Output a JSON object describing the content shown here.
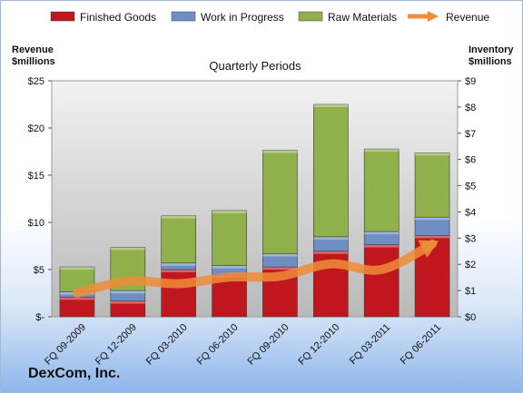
{
  "chart_data": {
    "type": "bar",
    "title": "Quarterly Periods",
    "company": "DexCom, Inc.",
    "categories": [
      "FQ 09-2009",
      "FQ 12-2009",
      "FQ 03-2010",
      "FQ 06-2010",
      "FQ 09-2010",
      "FQ 12-2010",
      "FQ 03-2011",
      "FQ 06-2011"
    ],
    "stacked": true,
    "series": [
      {
        "name": "Finished Goods",
        "axis": "right",
        "color": "#c0161e",
        "values": [
          0.75,
          0.6,
          1.8,
          1.6,
          1.9,
          2.5,
          2.75,
          3.1
        ]
      },
      {
        "name": "Work in Progress",
        "axis": "right",
        "color": "#6f8fc4",
        "values": [
          0.2,
          0.4,
          0.25,
          0.35,
          0.5,
          0.55,
          0.5,
          0.7
        ]
      },
      {
        "name": "Raw Materials",
        "axis": "right",
        "color": "#8fb04a",
        "values": [
          0.95,
          1.65,
          1.8,
          2.1,
          3.95,
          5.05,
          3.15,
          2.45
        ]
      },
      {
        "name": "Revenue",
        "axis": "left",
        "type": "line",
        "color": "#f08c3a",
        "values": [
          2.5,
          3.8,
          3.5,
          4.2,
          4.3,
          5.6,
          5.0,
          7.7
        ]
      }
    ],
    "y_left": {
      "label_line1": "Revenue",
      "label_line2": "$millions",
      "ticks": [
        "$-",
        "$5",
        "$10",
        "$15",
        "$20",
        "$25"
      ],
      "min": 0,
      "max": 25
    },
    "y_right": {
      "label_line1": "Inventory",
      "label_line2": "$millions",
      "ticks": [
        "$0",
        "$1",
        "$2",
        "$3",
        "$4",
        "$5",
        "$6",
        "$7",
        "$8",
        "$9"
      ],
      "min": 0,
      "max": 9
    },
    "legend_position": "top",
    "grid": false
  }
}
